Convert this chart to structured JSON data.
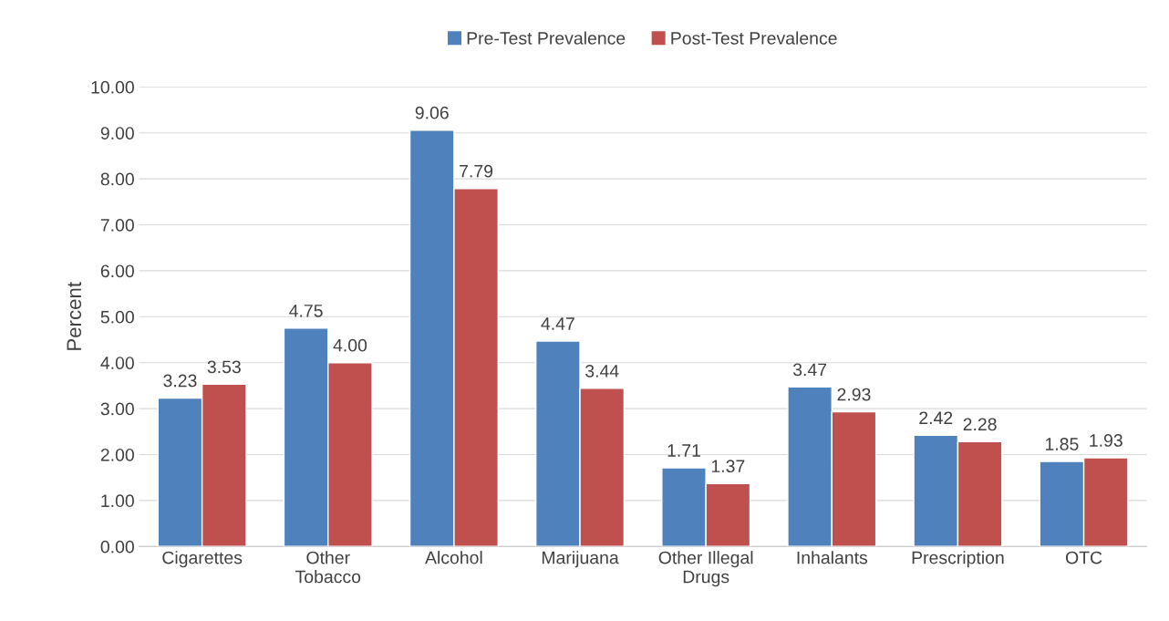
{
  "chart_data": {
    "type": "bar",
    "categories": [
      "Cigarettes",
      "Other\nTobacco",
      "Alcohol",
      "Marijuana",
      "Other Illegal\nDrugs",
      "Inhalants",
      "Prescription",
      "OTC"
    ],
    "series": [
      {
        "name": "Pre-Test Prevalence",
        "color": "#4f81bd",
        "values": [
          3.23,
          4.75,
          9.06,
          4.47,
          1.71,
          3.47,
          2.42,
          1.85
        ],
        "value_labels": [
          "3.23",
          "4.75",
          "9.06",
          "4.47",
          "1.71",
          "3.47",
          "2.42",
          "1.85"
        ]
      },
      {
        "name": "Post-Test Prevalence",
        "color": "#c0504d",
        "values": [
          3.53,
          4.0,
          7.79,
          3.44,
          1.37,
          2.93,
          2.28,
          1.93
        ],
        "value_labels": [
          "3.53",
          "4.00",
          "7.79",
          "3.44",
          "1.37",
          "2.93",
          "2.28",
          "1.93"
        ]
      }
    ],
    "ylabel": "Percent",
    "ylim": [
      0,
      10
    ],
    "yticks": [
      {
        "value": 0,
        "label": "0.00"
      },
      {
        "value": 1,
        "label": "1.00"
      },
      {
        "value": 2,
        "label": "2.00"
      },
      {
        "value": 3,
        "label": "3.00"
      },
      {
        "value": 4,
        "label": "4.00"
      },
      {
        "value": 5,
        "label": "5.00"
      },
      {
        "value": 6,
        "label": "6.00"
      },
      {
        "value": 7,
        "label": "7.00"
      },
      {
        "value": 8,
        "label": "8.00"
      },
      {
        "value": 9,
        "label": "9.00"
      },
      {
        "value": 10,
        "label": "10.00"
      }
    ],
    "grid": "y",
    "legend": "top"
  }
}
